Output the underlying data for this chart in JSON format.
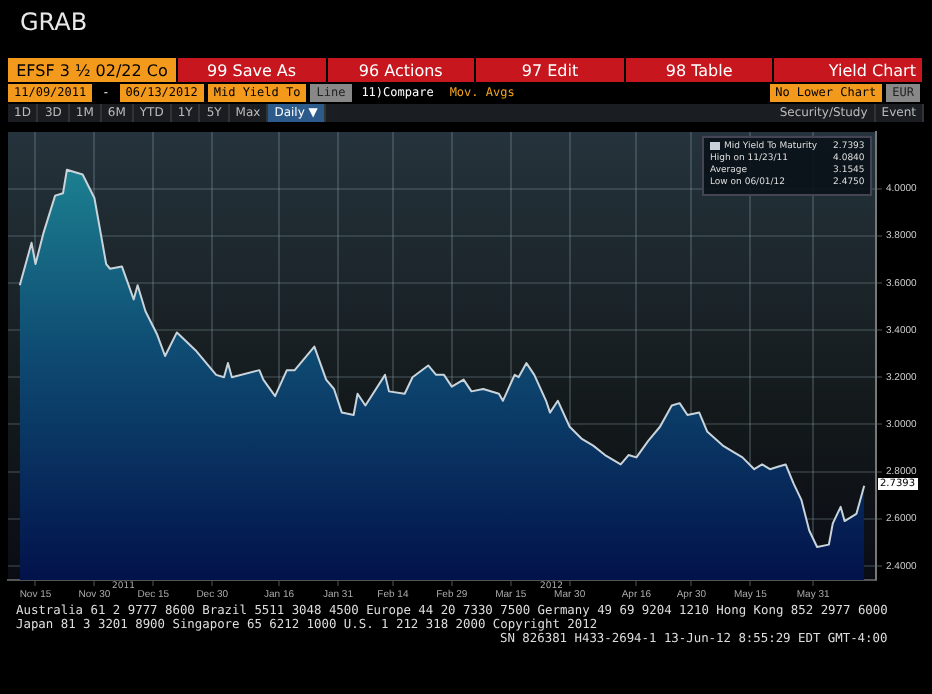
{
  "chart_data": {
    "type": "area",
    "title": "GRAB",
    "series": [
      {
        "name": "Mid Yield To Maturity",
        "color": "#c9d3da",
        "x": [
          "2011-11-11",
          "2011-11-14",
          "2011-11-15",
          "2011-11-17",
          "2011-11-20",
          "2011-11-22",
          "2011-11-23",
          "2011-11-27",
          "2011-11-30",
          "2011-12-03",
          "2011-12-04",
          "2011-12-07",
          "2011-12-10",
          "2011-12-11",
          "2011-12-13",
          "2011-12-16",
          "2011-12-18",
          "2011-12-21",
          "2011-12-26",
          "2011-12-31",
          "2012-01-02",
          "2012-01-03",
          "2012-01-04",
          "2012-01-11",
          "2012-01-12",
          "2012-01-15",
          "2012-01-18",
          "2012-01-20",
          "2012-01-25",
          "2012-01-28",
          "2012-01-30",
          "2012-02-01",
          "2012-02-04",
          "2012-02-05",
          "2012-02-07",
          "2012-02-12",
          "2012-02-13",
          "2012-02-17",
          "2012-02-19",
          "2012-02-23",
          "2012-02-25",
          "2012-02-27",
          "2012-02-29",
          "2012-03-03",
          "2012-03-05",
          "2012-03-08",
          "2012-03-12",
          "2012-03-13",
          "2012-03-16",
          "2012-03-17",
          "2012-03-19",
          "2012-03-21",
          "2012-03-24",
          "2012-03-25",
          "2012-03-27",
          "2012-03-30",
          "2012-04-02",
          "2012-04-05",
          "2012-04-08",
          "2012-04-12",
          "2012-04-14",
          "2012-04-16",
          "2012-04-19",
          "2012-04-22",
          "2012-04-25",
          "2012-04-27",
          "2012-04-29",
          "2012-05-02",
          "2012-05-04",
          "2012-05-08",
          "2012-05-10",
          "2012-05-13",
          "2012-05-16",
          "2012-05-18",
          "2012-05-20",
          "2012-05-22",
          "2012-05-24",
          "2012-05-26",
          "2012-05-28",
          "2012-05-30",
          "2012-06-01",
          "2012-06-04",
          "2012-06-05",
          "2012-06-07",
          "2012-06-08",
          "2012-06-11",
          "2012-06-13"
        ],
        "values": [
          3.59,
          3.77,
          3.68,
          3.81,
          3.97,
          3.98,
          4.08,
          4.06,
          3.96,
          3.68,
          3.66,
          3.67,
          3.53,
          3.59,
          3.48,
          3.38,
          3.29,
          3.39,
          3.31,
          3.21,
          3.2,
          3.26,
          3.2,
          3.23,
          3.19,
          3.12,
          3.23,
          3.23,
          3.33,
          3.19,
          3.15,
          3.05,
          3.04,
          3.13,
          3.08,
          3.21,
          3.14,
          3.13,
          3.2,
          3.25,
          3.21,
          3.21,
          3.16,
          3.19,
          3.14,
          3.15,
          3.13,
          3.1,
          3.21,
          3.2,
          3.26,
          3.21,
          3.1,
          3.05,
          3.1,
          2.99,
          2.94,
          2.91,
          2.87,
          2.83,
          2.87,
          2.86,
          2.93,
          2.99,
          3.08,
          3.09,
          3.04,
          3.05,
          2.97,
          2.91,
          2.89,
          2.86,
          2.81,
          2.83,
          2.81,
          2.82,
          2.83,
          2.75,
          2.68,
          2.55,
          2.48,
          2.49,
          2.58,
          2.65,
          2.59,
          2.62,
          2.74
        ]
      }
    ],
    "xlim": [
      "2011-11-08",
      "2012-06-16"
    ],
    "xticks": [
      {
        "value": "2011-11-15",
        "label": "Nov 15"
      },
      {
        "value": "2011-11-30",
        "label": "Nov 30"
      },
      {
        "value": "2011-12-15",
        "label": "Dec 15"
      },
      {
        "value": "2011-12-30",
        "label": "Dec 30"
      },
      {
        "value": "2012-01-16",
        "label": "Jan 16"
      },
      {
        "value": "2012-01-31",
        "label": "Jan 31"
      },
      {
        "value": "2012-02-14",
        "label": "Feb 14"
      },
      {
        "value": "2012-02-29",
        "label": "Feb 29"
      },
      {
        "value": "2012-03-15",
        "label": "Mar 15"
      },
      {
        "value": "2012-03-30",
        "label": "Mar 30"
      },
      {
        "value": "2012-04-16",
        "label": "Apr 16"
      },
      {
        "value": "2012-04-30",
        "label": "Apr 30"
      },
      {
        "value": "2012-05-15",
        "label": "May 15"
      },
      {
        "value": "2012-05-31",
        "label": "May 31"
      }
    ],
    "ylim": [
      2.34,
      4.24
    ],
    "yticks": [
      {
        "value": 2.4,
        "label": "2.4000"
      },
      {
        "value": 2.6,
        "label": "2.6000"
      },
      {
        "value": 2.8,
        "label": "2.8000"
      },
      {
        "value": 3.0,
        "label": "3.0000"
      },
      {
        "value": 3.2,
        "label": "3.2000"
      },
      {
        "value": 3.4,
        "label": "3.4000"
      },
      {
        "value": 3.6,
        "label": "3.6000"
      },
      {
        "value": 3.8,
        "label": "3.8000"
      },
      {
        "value": 4.0,
        "label": "4.0000"
      }
    ],
    "grid": true,
    "legend": "top right",
    "line_style": "solid",
    "marker": "none",
    "annotations": [
      "EFSF 3 ½ 02/22 Co",
      "99 Save As",
      "96 Actions",
      "97 Edit",
      "98 Table",
      "Yield Chart",
      "11/09/2011",
      "-",
      "06/13/2012",
      "Mid Yield To",
      "Line",
      "11)Compare",
      "Mov. Avgs",
      "No Lower Chart",
      "EUR",
      "1D",
      "3D",
      "1M",
      "6M",
      "YTD",
      "1Y",
      "5Y",
      "Max",
      "Daily ▼",
      "Security/Study",
      "Event",
      "2011",
      "2012",
      "2.7393",
      "High on 11/23/11",
      "4.0840",
      "Average",
      "3.1545",
      "Low on 06/01/12",
      "2.4750",
      "Australia 61 2 9777 8600 Brazil 5511 3048 4500 Europe 44 20 7330 7500 Germany 49 69 9204 1210 Hong Kong 852 2977 6000",
      "Japan 81 3 3201 8900 Singapore 65 6212 1000 U.S. 1 212 318 2000 Copyright 2012",
      "SN 826381 H433-2694-1 13-Jun-12 8:55:29 EDT GMT-4:00"
    ]
  }
}
